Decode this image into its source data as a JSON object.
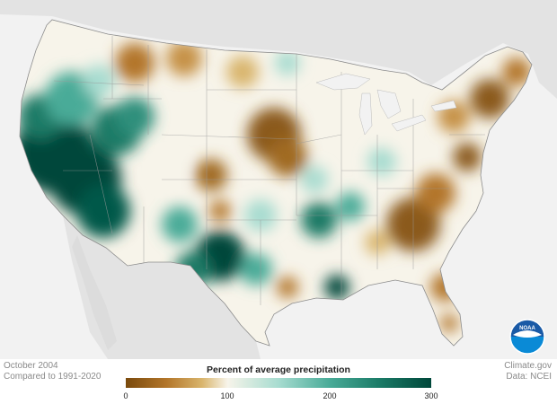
{
  "map": {
    "title": "Percent of average precipitation",
    "period": "October 2004",
    "baseline": "Compared to 1991-2020",
    "credit": "Climate.gov",
    "source": "Data: NCEI",
    "logo_text": "NOAA"
  },
  "legend": {
    "ticks": [
      "0",
      "100",
      "200",
      "300"
    ],
    "stops": [
      {
        "value": 0,
        "color": "#7a4a0d"
      },
      {
        "value": 40,
        "color": "#b3762a"
      },
      {
        "value": 75,
        "color": "#d9b56d"
      },
      {
        "value": 100,
        "color": "#f7f4ea"
      },
      {
        "value": 150,
        "color": "#a7dcd0"
      },
      {
        "value": 200,
        "color": "#49ab98"
      },
      {
        "value": 250,
        "color": "#1a7a66"
      },
      {
        "value": 300,
        "color": "#00473a"
      }
    ]
  },
  "colors": {
    "dry": "#8b5a1a",
    "wet": "#00473a",
    "neutral": "#f7f4ea",
    "land_outside": "#e1e1e1",
    "water": "#f2f2f2"
  }
}
